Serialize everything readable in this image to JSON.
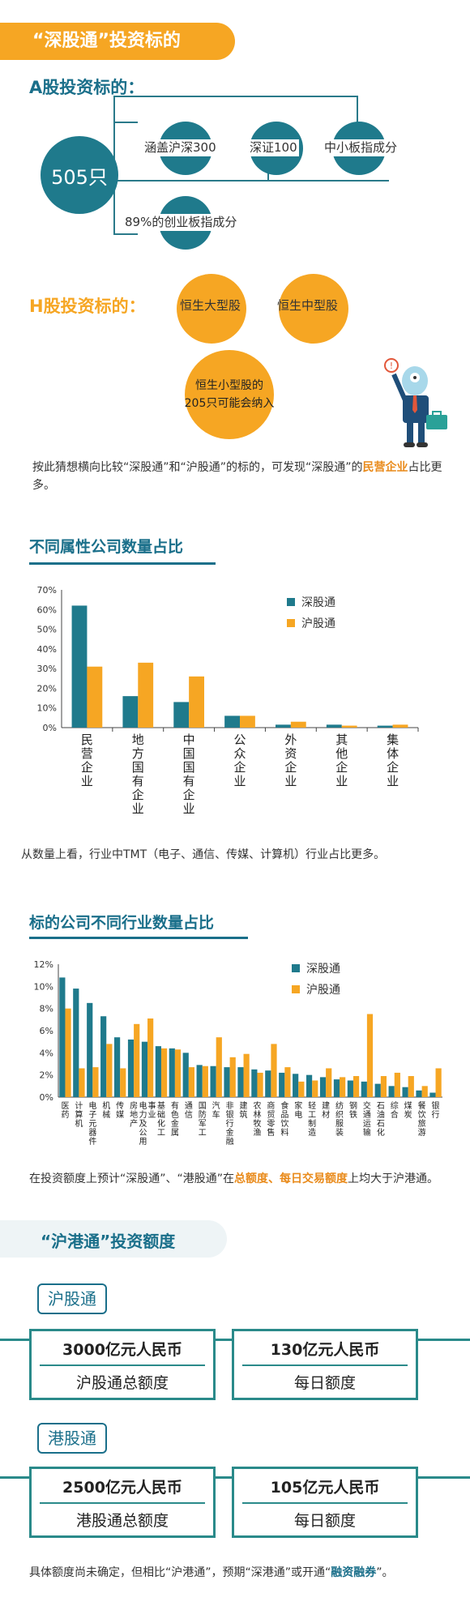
{
  "header": {
    "title": "“深股通”投资标的"
  },
  "a_share": {
    "heading": "A股投资标的：",
    "count": "505只",
    "items": [
      "涵盖沪深300",
      "深证100",
      "中小板指成分",
      "89%的创业板指成分"
    ]
  },
  "h_share": {
    "heading": "H股投资标的：",
    "items": [
      "恒生大型股",
      "恒生中型股"
    ],
    "small_line1": "恒生小型股的",
    "small_line2": "205只可能会纳入"
  },
  "note1": {
    "before": "按此猜想横向比较“深股通”和“沪股通”的标的，可发现“深股通”的",
    "highlight": "民营企业",
    "after": "占比更多。"
  },
  "chart1": {
    "title": "不同属性公司数量占比",
    "note_after": "从数量上看，行业中TMT（电子、通信、传媒、计算机）行业占比更多。"
  },
  "chart2": {
    "title": "标的公司不同行业数量占比",
    "note_before": "在投资额度上预计“深股通”、“港股通”在",
    "note_hl": "总额度、每日交易额度",
    "note_after": "上均大于沪港通。"
  },
  "quota": {
    "title": "“沪港通”投资额度",
    "sh_tag": "沪股通",
    "sh_total_amount": "3000亿元人民币",
    "sh_total_label": "沪股通总额度",
    "sh_daily_amount": "130亿元人民币",
    "sh_daily_label": "每日额度",
    "hk_tag": "港股通",
    "hk_total_amount": "2500亿元人民币",
    "hk_total_label": "港股通总额度",
    "hk_daily_amount": "105亿元人民币",
    "hk_daily_label": "每日额度"
  },
  "footer": {
    "before": "具体额度尚未确定，但相比“沪港通”，预期“深港通”或开通“",
    "highlight": "融资融券",
    "after": "”。"
  },
  "colors": {
    "shenzhen": "#1f7a8c",
    "shanghai": "#f6a623"
  },
  "chart_data": [
    {
      "type": "bar",
      "categories": [
        "民营企业",
        "地方国有企业",
        "中国国有企业",
        "公众企业",
        "外资企业",
        "其他企业",
        "集体企业"
      ],
      "series": [
        {
          "name": "深股通",
          "values": [
            62,
            16,
            13,
            6,
            1.5,
            1.5,
            1
          ]
        },
        {
          "name": "沪股通",
          "values": [
            31,
            33,
            26,
            6,
            3,
            1,
            1.5
          ]
        }
      ],
      "yticks": [
        "0%",
        "10%",
        "20%",
        "30%",
        "40%",
        "50%",
        "60%",
        "70%"
      ],
      "ylim": [
        0,
        70
      ],
      "legend": "top-right"
    },
    {
      "type": "bar",
      "categories": [
        "医药",
        "计算机",
        "电子元器件",
        "机械",
        "传媒",
        "房地产",
        "电力及公用事业",
        "基础化工",
        "有色金属",
        "通信",
        "国防军工",
        "汽车",
        "非银行金融",
        "建筑",
        "农林牧渔",
        "商贸零售",
        "食品饮料",
        "家电",
        "轻工制造",
        "建材",
        "纺织服装",
        "钢铁",
        "交通运输",
        "石油石化",
        "综合",
        "煤炭",
        "餐饮旅游",
        "银行"
      ],
      "series": [
        {
          "name": "深股通",
          "values": [
            10.8,
            9.8,
            8.5,
            7.3,
            5.4,
            5.2,
            5.0,
            4.6,
            4.4,
            4.0,
            2.9,
            2.8,
            2.7,
            2.7,
            2.5,
            2.4,
            2.2,
            2.1,
            2.0,
            1.8,
            1.6,
            1.5,
            1.4,
            1.2,
            1.0,
            0.9,
            0.6,
            0.4
          ]
        },
        {
          "name": "沪股通",
          "values": [
            8.0,
            2.6,
            2.7,
            4.8,
            2.6,
            6.6,
            7.1,
            4.4,
            4.3,
            2.7,
            2.8,
            5.4,
            3.6,
            3.9,
            2.2,
            4.8,
            2.7,
            1.4,
            1.5,
            2.6,
            1.8,
            1.9,
            7.5,
            1.9,
            2.2,
            1.9,
            1.0,
            2.6
          ]
        }
      ],
      "yticks": [
        "0%",
        "2%",
        "4%",
        "6%",
        "8%",
        "10%",
        "12%"
      ],
      "ylim": [
        0,
        12
      ],
      "legend": "top-right"
    }
  ]
}
